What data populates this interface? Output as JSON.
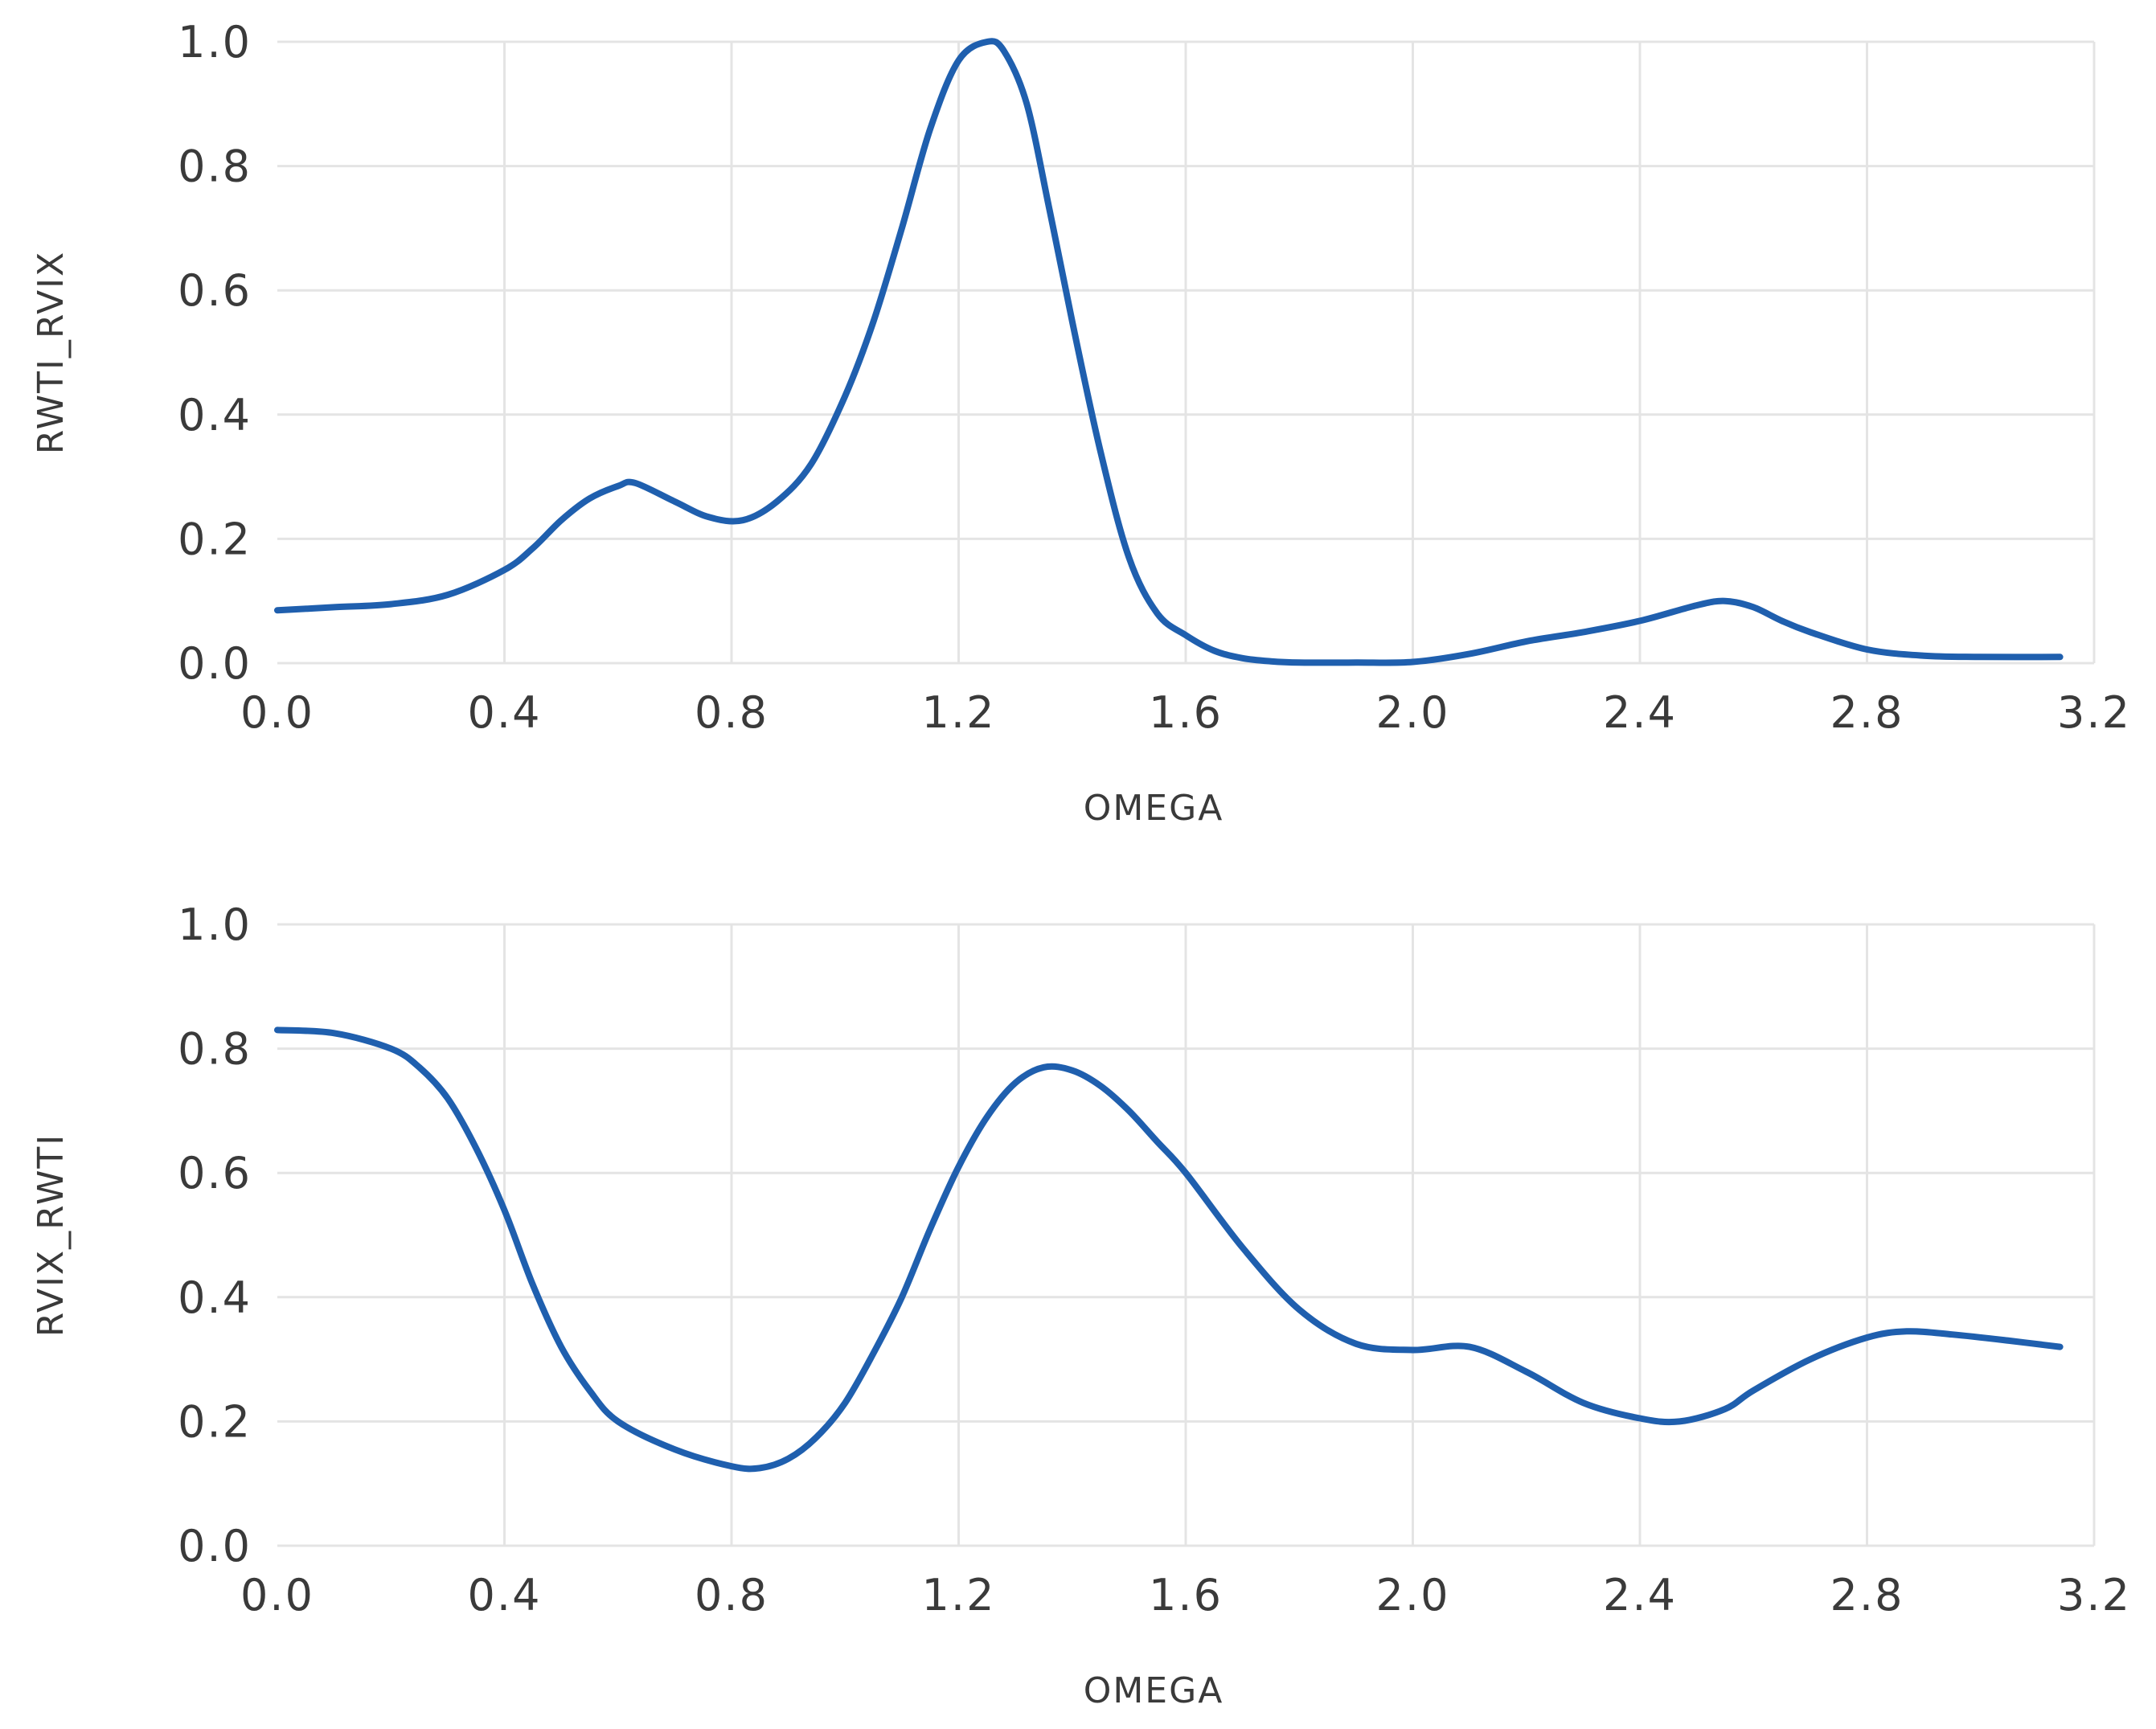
{
  "chart_data": [
    {
      "type": "line",
      "title": "",
      "xlabel": "OMEGA",
      "ylabel": "RWTI_RVIX",
      "xlim": [
        0.0,
        3.2
      ],
      "ylim": [
        0.0,
        1.0
      ],
      "grid": true,
      "xticks": [
        "0.0",
        "0.4",
        "0.8",
        "1.2",
        "1.6",
        "2.0",
        "2.4",
        "2.8",
        "3.2"
      ],
      "yticks": [
        "0.0",
        "0.2",
        "0.4",
        "0.6",
        "0.8",
        "1.0"
      ],
      "series": [
        {
          "name": "RWTI_RVIX",
          "color": "#1f5fae",
          "x": [
            0.0,
            0.1,
            0.2,
            0.3,
            0.4,
            0.45,
            0.5,
            0.55,
            0.6,
            0.63,
            0.7,
            0.76,
            0.82,
            0.88,
            0.94,
            1.0,
            1.05,
            1.1,
            1.15,
            1.2,
            1.25,
            1.28,
            1.32,
            1.36,
            1.4,
            1.45,
            1.5,
            1.55,
            1.6,
            1.65,
            1.7,
            1.75,
            1.8,
            1.9,
            2.0,
            2.1,
            2.2,
            2.3,
            2.4,
            2.5,
            2.55,
            2.6,
            2.65,
            2.7,
            2.8,
            2.9,
            3.0,
            3.14
          ],
          "y": [
            0.085,
            0.09,
            0.095,
            0.11,
            0.15,
            0.185,
            0.23,
            0.265,
            0.285,
            0.29,
            0.26,
            0.235,
            0.23,
            0.26,
            0.32,
            0.43,
            0.55,
            0.7,
            0.86,
            0.97,
            1.0,
            0.985,
            0.9,
            0.73,
            0.55,
            0.34,
            0.17,
            0.08,
            0.045,
            0.02,
            0.008,
            0.003,
            0.001,
            0.001,
            0.002,
            0.015,
            0.035,
            0.05,
            0.068,
            0.093,
            0.1,
            0.09,
            0.068,
            0.05,
            0.022,
            0.012,
            0.01,
            0.01
          ]
        }
      ]
    },
    {
      "type": "line",
      "title": "",
      "xlabel": "OMEGA",
      "ylabel": "RVIX_RWTI",
      "xlim": [
        0.0,
        3.2
      ],
      "ylim": [
        0.0,
        1.0
      ],
      "grid": true,
      "xticks": [
        "0.0",
        "0.4",
        "0.8",
        "1.2",
        "1.6",
        "2.0",
        "2.4",
        "2.8",
        "3.2"
      ],
      "yticks": [
        "0.0",
        "0.2",
        "0.4",
        "0.6",
        "0.8",
        "1.0"
      ],
      "series": [
        {
          "name": "RVIX_RWTI",
          "color": "#1f5fae",
          "x": [
            0.0,
            0.1,
            0.2,
            0.25,
            0.3,
            0.35,
            0.4,
            0.45,
            0.5,
            0.55,
            0.6,
            0.7,
            0.8,
            0.85,
            0.9,
            0.95,
            1.0,
            1.05,
            1.1,
            1.15,
            1.2,
            1.25,
            1.3,
            1.35,
            1.4,
            1.45,
            1.5,
            1.55,
            1.6,
            1.7,
            1.8,
            1.9,
            2.0,
            2.1,
            2.2,
            2.3,
            2.4,
            2.47,
            2.55,
            2.6,
            2.7,
            2.8,
            2.87,
            2.95,
            3.05,
            3.14
          ],
          "y": [
            0.83,
            0.825,
            0.8,
            0.77,
            0.72,
            0.64,
            0.54,
            0.42,
            0.32,
            0.25,
            0.2,
            0.155,
            0.128,
            0.125,
            0.14,
            0.175,
            0.23,
            0.31,
            0.4,
            0.51,
            0.61,
            0.69,
            0.745,
            0.77,
            0.765,
            0.74,
            0.7,
            0.65,
            0.6,
            0.48,
            0.38,
            0.325,
            0.315,
            0.32,
            0.28,
            0.23,
            0.205,
            0.2,
            0.22,
            0.25,
            0.3,
            0.335,
            0.345,
            0.34,
            0.33,
            0.32
          ]
        }
      ]
    }
  ]
}
